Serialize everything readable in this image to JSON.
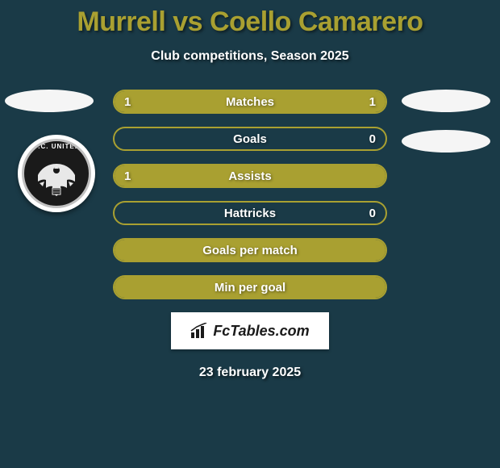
{
  "title": "Murrell vs Coello Camarero",
  "subtitle": "Club competitions, Season 2025",
  "date": "23 february 2025",
  "logo_text": "FcTables.com",
  "colors": {
    "background": "#1a3a47",
    "accent": "#a9a031",
    "text_light": "#ffffff",
    "ellipse": "#f5f5f5"
  },
  "badge": {
    "arc_text": "D.C. UNITED"
  },
  "stats": [
    {
      "label": "Matches",
      "left_val": "1",
      "right_val": "1",
      "left_pct": 50,
      "right_pct": 50,
      "full": true
    },
    {
      "label": "Goals",
      "left_val": "",
      "right_val": "0",
      "left_pct": 0,
      "right_pct": 0,
      "full": false
    },
    {
      "label": "Assists",
      "left_val": "1",
      "right_val": "",
      "left_pct": 100,
      "right_pct": 0,
      "full": true
    },
    {
      "label": "Hattricks",
      "left_val": "",
      "right_val": "0",
      "left_pct": 0,
      "right_pct": 0,
      "full": false
    },
    {
      "label": "Goals per match",
      "left_val": "",
      "right_val": "",
      "left_pct": 0,
      "right_pct": 0,
      "full": true
    },
    {
      "label": "Min per goal",
      "left_val": "",
      "right_val": "",
      "left_pct": 0,
      "right_pct": 0,
      "full": true
    }
  ]
}
